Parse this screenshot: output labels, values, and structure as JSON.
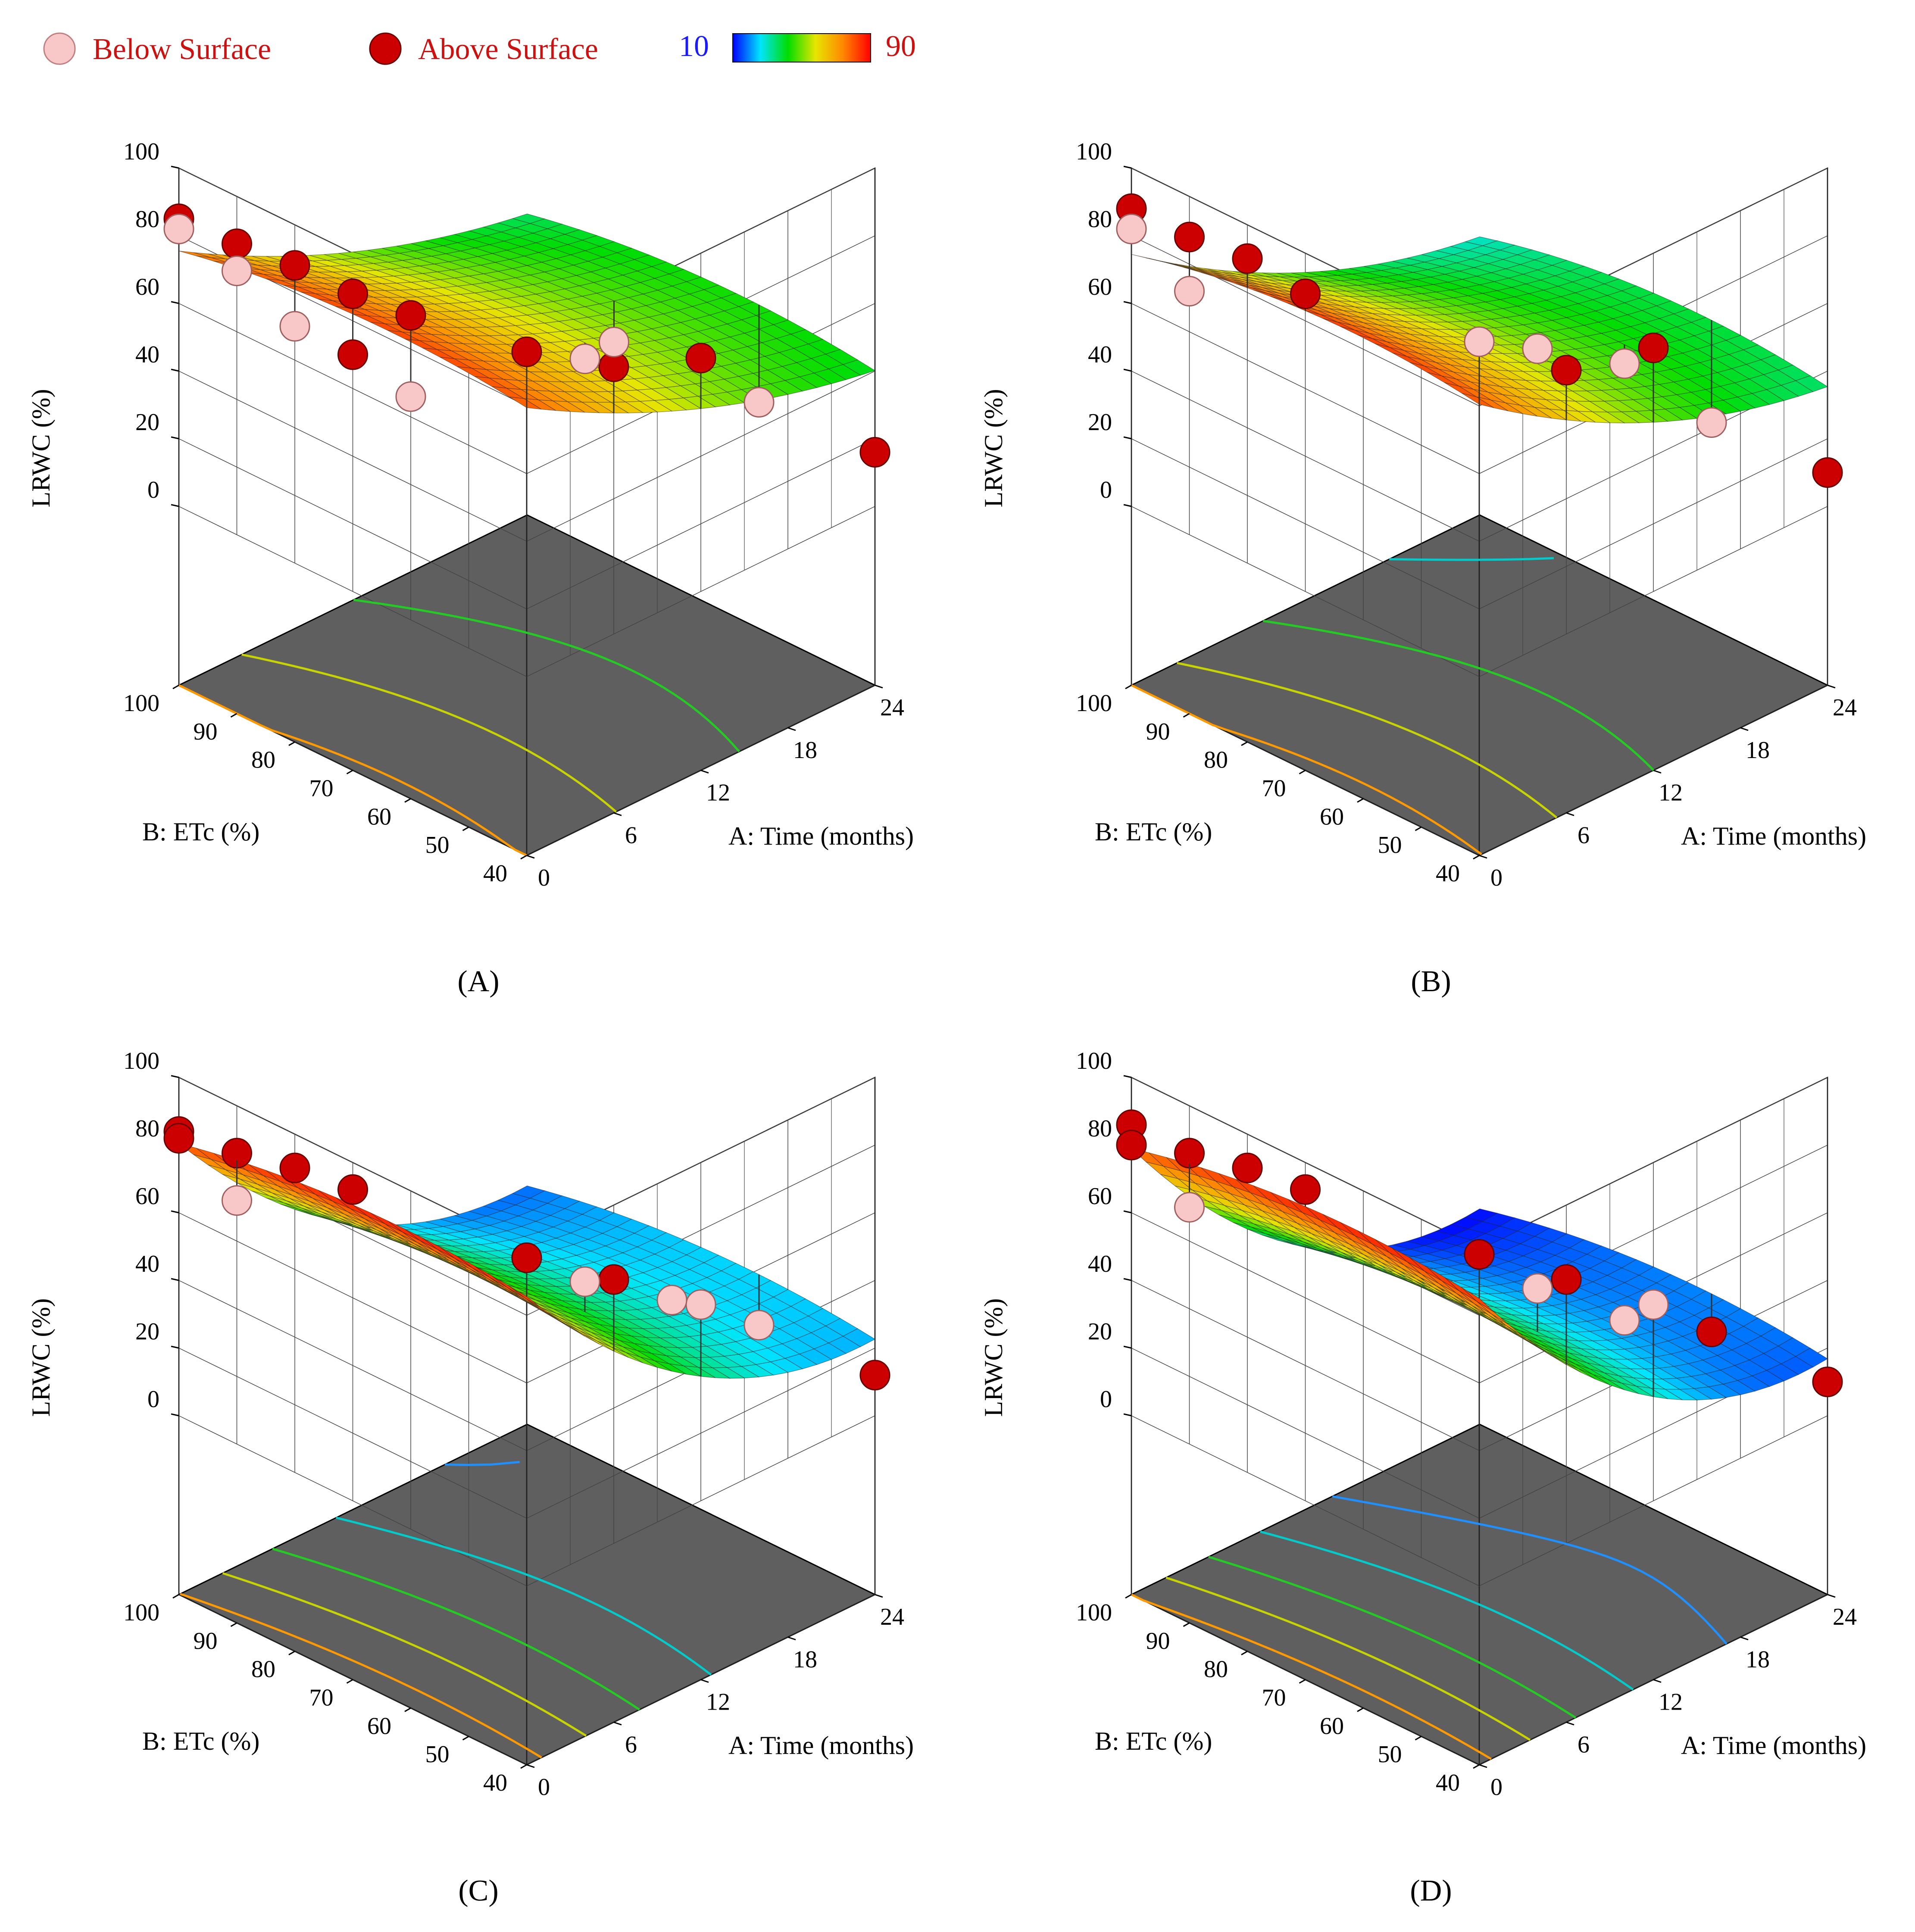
{
  "legend": {
    "below_label": "Below Surface",
    "above_label": "Above Surface",
    "below_color": "#f8c8c8",
    "above_color": "#cc0000",
    "colorbar_min": "10",
    "colorbar_max": "90",
    "colorbar_stops": [
      "#0000ff",
      "#00e5ff",
      "#00dd00",
      "#e6e600",
      "#ff8800",
      "#ff0000"
    ]
  },
  "chart_data": [
    {
      "panel": "A",
      "type": "surface3d",
      "zlabel": "LRWC (%)",
      "xlabel": "A: Time (months)",
      "ylabel": "B: ETc (%)",
      "xticks": [
        "0",
        "6",
        "12",
        "18",
        "24"
      ],
      "yticks": [
        "40",
        "50",
        "60",
        "70",
        "80",
        "90",
        "100"
      ],
      "zticks": [
        "0",
        "20",
        "40",
        "60",
        "80",
        "100"
      ],
      "xlim": [
        0,
        24
      ],
      "ylim": [
        40,
        100
      ],
      "zlim": [
        0,
        100
      ],
      "model": {
        "c0": 84,
        "c1": -2.6,
        "c2": 0.04,
        "etc_coef": -4,
        "etc_quad": -18
      },
      "points": [
        {
          "time": 0,
          "etc": 100,
          "lrwc": 85,
          "pos": "above"
        },
        {
          "time": 0,
          "etc": 100,
          "lrwc": 82,
          "pos": "below"
        },
        {
          "time": 0,
          "etc": 90,
          "lrwc": 86,
          "pos": "above"
        },
        {
          "time": 0,
          "etc": 90,
          "lrwc": 78,
          "pos": "below"
        },
        {
          "time": 0,
          "etc": 80,
          "lrwc": 88,
          "pos": "above"
        },
        {
          "time": 0,
          "etc": 80,
          "lrwc": 70,
          "pos": "below"
        },
        {
          "time": 0,
          "etc": 70,
          "lrwc": 88,
          "pos": "above"
        },
        {
          "time": 0,
          "etc": 70,
          "lrwc": 70,
          "pos": "above"
        },
        {
          "time": 0,
          "etc": 60,
          "lrwc": 90,
          "pos": "above"
        },
        {
          "time": 0,
          "etc": 60,
          "lrwc": 66,
          "pos": "below"
        },
        {
          "time": 0,
          "etc": 40,
          "lrwc": 96,
          "pos": "above"
        },
        {
          "time": 6,
          "etc": 40,
          "lrwc": 79,
          "pos": "above"
        },
        {
          "time": 12,
          "etc": 40,
          "lrwc": 69,
          "pos": "above"
        },
        {
          "time": 12,
          "etc": 60,
          "lrwc": 52,
          "pos": "below"
        },
        {
          "time": 18,
          "etc": 70,
          "lrwc": 36,
          "pos": "below"
        },
        {
          "time": 24,
          "etc": 40,
          "lrwc": 16,
          "pos": "above"
        },
        {
          "time": 24,
          "etc": 60,
          "lrwc": 14,
          "pos": "below"
        }
      ],
      "contours": [
        80,
        65,
        50,
        35,
        20
      ],
      "contour_colors": [
        "#ff9900",
        "#c8d400",
        "#22cc22",
        "#00cccc",
        "#1e90ff"
      ],
      "caption": "(A)"
    },
    {
      "panel": "B",
      "type": "surface3d",
      "zlabel": "LRWC (%)",
      "xlabel": "A: Time (months)",
      "ylabel": "B: ETc (%)",
      "xticks": [
        "0",
        "6",
        "12",
        "18",
        "24"
      ],
      "yticks": [
        "40",
        "50",
        "60",
        "70",
        "80",
        "90",
        "100"
      ],
      "zticks": [
        "0",
        "20",
        "40",
        "60",
        "80",
        "100"
      ],
      "xlim": [
        0,
        24
      ],
      "ylim": [
        40,
        100
      ],
      "zlim": [
        0,
        100
      ],
      "model": {
        "c0": 86,
        "c1": -3.2,
        "c2": 0.055,
        "etc_coef": -6,
        "etc_quad": -22
      },
      "points": [
        {
          "time": 0,
          "etc": 100,
          "lrwc": 88,
          "pos": "above"
        },
        {
          "time": 0,
          "etc": 100,
          "lrwc": 82,
          "pos": "below"
        },
        {
          "time": 0,
          "etc": 90,
          "lrwc": 88,
          "pos": "above"
        },
        {
          "time": 0,
          "etc": 90,
          "lrwc": 72,
          "pos": "below"
        },
        {
          "time": 0,
          "etc": 80,
          "lrwc": 90,
          "pos": "above"
        },
        {
          "time": 0,
          "etc": 70,
          "lrwc": 88,
          "pos": "above"
        },
        {
          "time": 0,
          "etc": 40,
          "lrwc": 99,
          "pos": "below"
        },
        {
          "time": 6,
          "etc": 40,
          "lrwc": 78,
          "pos": "above"
        },
        {
          "time": 12,
          "etc": 40,
          "lrwc": 72,
          "pos": "above"
        },
        {
          "time": 12,
          "etc": 60,
          "lrwc": 55,
          "pos": "below"
        },
        {
          "time": 18,
          "etc": 60,
          "lrwc": 38,
          "pos": "below"
        },
        {
          "time": 24,
          "etc": 40,
          "lrwc": 10,
          "pos": "above"
        },
        {
          "time": 24,
          "etc": 60,
          "lrwc": 8,
          "pos": "below"
        }
      ],
      "contours": [
        80,
        65,
        50,
        35,
        20
      ],
      "contour_colors": [
        "#ff9900",
        "#c8d400",
        "#22cc22",
        "#00cccc",
        "#1e90ff"
      ],
      "caption": "(B)"
    },
    {
      "panel": "C",
      "type": "surface3d",
      "zlabel": "LRWC (%)",
      "xlabel": "A: Time (months)",
      "ylabel": "B: ETc (%)",
      "xticks": [
        "0",
        "6",
        "12",
        "18",
        "24"
      ],
      "yticks": [
        "40",
        "50",
        "60",
        "70",
        "80",
        "90",
        "100"
      ],
      "zticks": [
        "0",
        "20",
        "40",
        "60",
        "80",
        "100"
      ],
      "xlim": [
        0,
        24
      ],
      "ylim": [
        40,
        100
      ],
      "zlim": [
        0,
        100
      ],
      "model": {
        "c0": 90,
        "c1": -5.5,
        "c2": 0.12,
        "etc_coef": -5,
        "etc_quad": -18
      },
      "points": [
        {
          "time": 0,
          "etc": 100,
          "lrwc": 84,
          "pos": "above"
        },
        {
          "time": 0,
          "etc": 100,
          "lrwc": 82,
          "pos": "above"
        },
        {
          "time": 0,
          "etc": 90,
          "lrwc": 86,
          "pos": "above"
        },
        {
          "time": 0,
          "etc": 90,
          "lrwc": 72,
          "pos": "below"
        },
        {
          "time": 0,
          "etc": 80,
          "lrwc": 90,
          "pos": "above"
        },
        {
          "time": 0,
          "etc": 70,
          "lrwc": 92,
          "pos": "above"
        },
        {
          "time": 0,
          "etc": 40,
          "lrwc": 97,
          "pos": "above"
        },
        {
          "time": 6,
          "etc": 40,
          "lrwc": 78,
          "pos": "above"
        },
        {
          "time": 12,
          "etc": 40,
          "lrwc": 58,
          "pos": "below"
        },
        {
          "time": 12,
          "etc": 60,
          "lrwc": 48,
          "pos": "below"
        },
        {
          "time": 18,
          "etc": 60,
          "lrwc": 30,
          "pos": "below"
        },
        {
          "time": 24,
          "etc": 40,
          "lrwc": 12,
          "pos": "above"
        },
        {
          "time": 24,
          "etc": 60,
          "lrwc": 10,
          "pos": "below"
        }
      ],
      "contours": [
        80,
        65,
        50,
        35,
        20
      ],
      "contour_colors": [
        "#ff9900",
        "#c8d400",
        "#22cc22",
        "#00cccc",
        "#1e90ff"
      ],
      "caption": "(C)"
    },
    {
      "panel": "D",
      "type": "surface3d",
      "zlabel": "LRWC (%)",
      "xlabel": "A: Time (months)",
      "ylabel": "B: ETc (%)",
      "xticks": [
        "0",
        "6",
        "12",
        "18",
        "24"
      ],
      "yticks": [
        "40",
        "50",
        "60",
        "70",
        "80",
        "90",
        "100"
      ],
      "zticks": [
        "0",
        "20",
        "40",
        "60",
        "80",
        "100"
      ],
      "xlim": [
        0,
        24
      ],
      "ylim": [
        40,
        100
      ],
      "zlim": [
        0,
        100
      ],
      "model": {
        "c0": 90,
        "c1": -6.2,
        "c2": 0.14,
        "etc_coef": -6,
        "etc_quad": -20
      },
      "points": [
        {
          "time": 0,
          "etc": 100,
          "lrwc": 86,
          "pos": "above"
        },
        {
          "time": 0,
          "etc": 100,
          "lrwc": 80,
          "pos": "above"
        },
        {
          "time": 0,
          "etc": 90,
          "lrwc": 86,
          "pos": "above"
        },
        {
          "time": 0,
          "etc": 90,
          "lrwc": 70,
          "pos": "below"
        },
        {
          "time": 0,
          "etc": 80,
          "lrwc": 90,
          "pos": "above"
        },
        {
          "time": 0,
          "etc": 70,
          "lrwc": 92,
          "pos": "above"
        },
        {
          "time": 0,
          "etc": 40,
          "lrwc": 98,
          "pos": "above"
        },
        {
          "time": 6,
          "etc": 40,
          "lrwc": 78,
          "pos": "above"
        },
        {
          "time": 12,
          "etc": 40,
          "lrwc": 58,
          "pos": "below"
        },
        {
          "time": 12,
          "etc": 60,
          "lrwc": 46,
          "pos": "below"
        },
        {
          "time": 18,
          "etc": 60,
          "lrwc": 24,
          "pos": "below"
        },
        {
          "time": 24,
          "etc": 40,
          "lrwc": 10,
          "pos": "above"
        },
        {
          "time": 24,
          "etc": 60,
          "lrwc": 8,
          "pos": "above"
        }
      ],
      "contours": [
        80,
        65,
        50,
        35,
        20
      ],
      "contour_colors": [
        "#ff9900",
        "#c8d400",
        "#22cc22",
        "#00cccc",
        "#1e90ff"
      ],
      "caption": "(D)"
    }
  ]
}
